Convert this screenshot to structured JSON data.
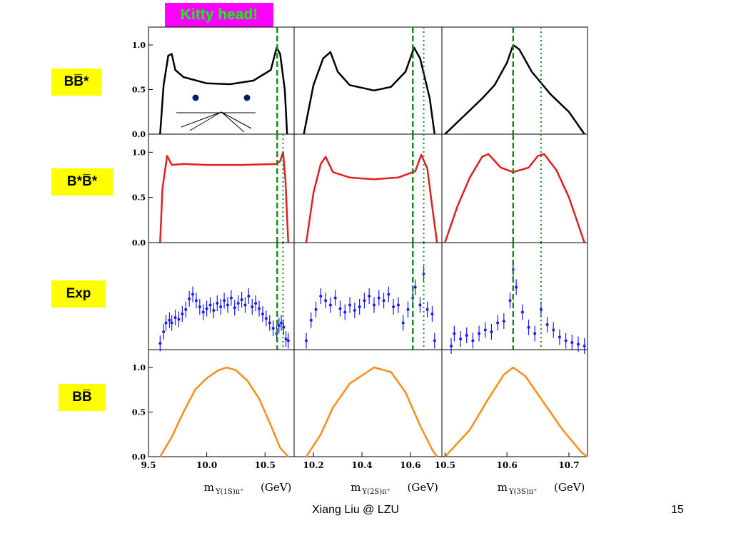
{
  "slide": {
    "banner": "Kitty head!",
    "footer_author": "Xiang Liu @ LZU",
    "page_number": "15",
    "colors": {
      "banner_bg": "#ff00ff",
      "banner_text": "#00ff00",
      "label_bg": "#ffff00"
    }
  },
  "chart_data": {
    "type": "line",
    "layout": "4x3 panel grid",
    "row_labels": [
      "BB̅*",
      "B*B̅*",
      "Exp",
      "BB̅"
    ],
    "row_colors": [
      "#000000",
      "#e02020",
      "#1a1aff",
      "#ff8c1a"
    ],
    "ylim": [
      0,
      1.2
    ],
    "yticks": [
      "0.0",
      "0.5",
      "1.0"
    ],
    "columns": [
      {
        "xlabel": "m",
        "xlabel_sub": "Υ(1S)π⁺",
        "xlabel_unit": "(GeV)",
        "xlim": [
          9.5,
          10.75
        ],
        "xticks": [
          9.5,
          10.0,
          10.5
        ],
        "xtick_labels": [
          "9.5",
          "10.0",
          "10.5"
        ],
        "dashed_line_x": 10.605,
        "dotted_line_x": 10.655,
        "curves": {
          "BBstar": [
            [
              9.6,
              0
            ],
            [
              9.63,
              0.55
            ],
            [
              9.67,
              0.88
            ],
            [
              9.7,
              0.9
            ],
            [
              9.73,
              0.72
            ],
            [
              9.8,
              0.64
            ],
            [
              10.0,
              0.57
            ],
            [
              10.2,
              0.56
            ],
            [
              10.4,
              0.6
            ],
            [
              10.55,
              0.72
            ],
            [
              10.6,
              0.97
            ],
            [
              10.63,
              0.9
            ],
            [
              10.67,
              0.5
            ],
            [
              10.69,
              0
            ]
          ],
          "BstarBstar": [
            [
              9.6,
              0
            ],
            [
              9.62,
              0.6
            ],
            [
              9.66,
              0.96
            ],
            [
              9.7,
              0.86
            ],
            [
              9.8,
              0.87
            ],
            [
              10.0,
              0.86
            ],
            [
              10.3,
              0.86
            ],
            [
              10.6,
              0.87
            ],
            [
              10.63,
              0.9
            ],
            [
              10.655,
              1.0
            ],
            [
              10.675,
              0.7
            ],
            [
              10.7,
              0
            ]
          ],
          "BB": [
            [
              9.6,
              0
            ],
            [
              9.7,
              0.22
            ],
            [
              9.8,
              0.5
            ],
            [
              9.9,
              0.75
            ],
            [
              10.0,
              0.88
            ],
            [
              10.1,
              0.97
            ],
            [
              10.17,
              1.0
            ],
            [
              10.25,
              0.97
            ],
            [
              10.35,
              0.85
            ],
            [
              10.45,
              0.65
            ],
            [
              10.55,
              0.35
            ],
            [
              10.63,
              0.1
            ],
            [
              10.7,
              0
            ]
          ]
        },
        "exp_points": [
          [
            9.6,
            0.07
          ],
          [
            9.63,
            0.2
          ],
          [
            9.65,
            0.3
          ],
          [
            9.68,
            0.33
          ],
          [
            9.7,
            0.3
          ],
          [
            9.73,
            0.36
          ],
          [
            9.76,
            0.34
          ],
          [
            9.79,
            0.4
          ],
          [
            9.82,
            0.45
          ],
          [
            9.85,
            0.57
          ],
          [
            9.88,
            0.62
          ],
          [
            9.91,
            0.55
          ],
          [
            9.94,
            0.48
          ],
          [
            9.97,
            0.42
          ],
          [
            10.0,
            0.46
          ],
          [
            10.03,
            0.5
          ],
          [
            10.06,
            0.44
          ],
          [
            10.09,
            0.52
          ],
          [
            10.12,
            0.48
          ],
          [
            10.15,
            0.55
          ],
          [
            10.18,
            0.5
          ],
          [
            10.21,
            0.58
          ],
          [
            10.24,
            0.47
          ],
          [
            10.27,
            0.52
          ],
          [
            10.3,
            0.56
          ],
          [
            10.33,
            0.5
          ],
          [
            10.36,
            0.6
          ],
          [
            10.39,
            0.48
          ],
          [
            10.42,
            0.52
          ],
          [
            10.45,
            0.46
          ],
          [
            10.48,
            0.4
          ],
          [
            10.51,
            0.35
          ],
          [
            10.54,
            0.3
          ],
          [
            10.57,
            0.24
          ],
          [
            10.6,
            0.18
          ],
          [
            10.62,
            0.27
          ],
          [
            10.64,
            0.3
          ],
          [
            10.66,
            0.25
          ],
          [
            10.68,
            0.12
          ],
          [
            10.7,
            0.1
          ]
        ]
      },
      {
        "xlabel": "m",
        "xlabel_sub": "Υ(2S)π⁺",
        "xlabel_unit": "(GeV)",
        "xlim": [
          10.12,
          10.73
        ],
        "xticks": [
          10.2,
          10.4,
          10.6
        ],
        "xtick_labels": [
          "10.2",
          "10.4",
          "10.6"
        ],
        "dashed_line_x": 10.61,
        "dotted_line_x": 10.655,
        "curves": {
          "BBstar": [
            [
              10.16,
              0
            ],
            [
              10.2,
              0.55
            ],
            [
              10.24,
              0.85
            ],
            [
              10.27,
              0.92
            ],
            [
              10.3,
              0.7
            ],
            [
              10.35,
              0.55
            ],
            [
              10.45,
              0.49
            ],
            [
              10.52,
              0.53
            ],
            [
              10.58,
              0.7
            ],
            [
              10.615,
              0.97
            ],
            [
              10.64,
              0.85
            ],
            [
              10.68,
              0.4
            ],
            [
              10.7,
              0
            ]
          ],
          "BstarBstar": [
            [
              10.17,
              0
            ],
            [
              10.2,
              0.55
            ],
            [
              10.23,
              0.87
            ],
            [
              10.25,
              0.95
            ],
            [
              10.28,
              0.78
            ],
            [
              10.35,
              0.72
            ],
            [
              10.45,
              0.7
            ],
            [
              10.55,
              0.72
            ],
            [
              10.62,
              0.79
            ],
            [
              10.645,
              0.97
            ],
            [
              10.67,
              0.82
            ],
            [
              10.69,
              0.4
            ],
            [
              10.71,
              0
            ]
          ],
          "BB": [
            [
              10.17,
              0
            ],
            [
              10.23,
              0.25
            ],
            [
              10.28,
              0.55
            ],
            [
              10.35,
              0.82
            ],
            [
              10.45,
              1.0
            ],
            [
              10.52,
              0.95
            ],
            [
              10.58,
              0.72
            ],
            [
              10.64,
              0.35
            ],
            [
              10.69,
              0.08
            ],
            [
              10.71,
              0
            ]
          ]
        },
        "exp_points": [
          [
            10.17,
            0.1
          ],
          [
            10.19,
            0.33
          ],
          [
            10.21,
            0.45
          ],
          [
            10.23,
            0.6
          ],
          [
            10.25,
            0.55
          ],
          [
            10.27,
            0.5
          ],
          [
            10.29,
            0.58
          ],
          [
            10.31,
            0.46
          ],
          [
            10.33,
            0.42
          ],
          [
            10.35,
            0.5
          ],
          [
            10.37,
            0.44
          ],
          [
            10.39,
            0.48
          ],
          [
            10.41,
            0.55
          ],
          [
            10.43,
            0.6
          ],
          [
            10.45,
            0.5
          ],
          [
            10.47,
            0.58
          ],
          [
            10.49,
            0.55
          ],
          [
            10.51,
            0.62
          ],
          [
            10.53,
            0.48
          ],
          [
            10.55,
            0.5
          ],
          [
            10.57,
            0.3
          ],
          [
            10.59,
            0.45
          ],
          [
            10.61,
            0.58
          ],
          [
            10.62,
            0.7
          ],
          [
            10.64,
            0.5
          ],
          [
            10.655,
            0.85
          ],
          [
            10.67,
            0.45
          ],
          [
            10.69,
            0.4
          ],
          [
            10.7,
            0.1
          ]
        ]
      },
      {
        "xlabel": "m",
        "xlabel_sub": "Υ(3S)π⁺",
        "xlabel_unit": "(GeV)",
        "xlim": [
          10.495,
          10.73
        ],
        "xticks": [
          10.5,
          10.6,
          10.7
        ],
        "xtick_labels": [
          "10.5",
          "10.6",
          "10.7"
        ],
        "dashed_line_x": 10.61,
        "dotted_line_x": 10.655,
        "curves": {
          "BBstar": [
            [
              10.5,
              0
            ],
            [
              10.53,
              0.2
            ],
            [
              10.56,
              0.4
            ],
            [
              10.58,
              0.55
            ],
            [
              10.6,
              0.8
            ],
            [
              10.61,
              1.0
            ],
            [
              10.62,
              0.95
            ],
            [
              10.64,
              0.7
            ],
            [
              10.67,
              0.45
            ],
            [
              10.7,
              0.25
            ],
            [
              10.725,
              0
            ]
          ],
          "BstarBstar": [
            [
              10.5,
              0
            ],
            [
              10.52,
              0.4
            ],
            [
              10.54,
              0.72
            ],
            [
              10.56,
              0.95
            ],
            [
              10.57,
              0.98
            ],
            [
              10.59,
              0.83
            ],
            [
              10.61,
              0.78
            ],
            [
              10.635,
              0.83
            ],
            [
              10.65,
              0.96
            ],
            [
              10.66,
              0.98
            ],
            [
              10.68,
              0.8
            ],
            [
              10.7,
              0.5
            ],
            [
              10.725,
              0
            ]
          ],
          "BB": [
            [
              10.5,
              0
            ],
            [
              10.54,
              0.3
            ],
            [
              10.57,
              0.65
            ],
            [
              10.595,
              0.92
            ],
            [
              10.61,
              1.0
            ],
            [
              10.63,
              0.9
            ],
            [
              10.66,
              0.6
            ],
            [
              10.69,
              0.3
            ],
            [
              10.72,
              0.05
            ],
            [
              10.73,
              0
            ]
          ]
        },
        "exp_points": [
          [
            10.51,
            0.04
          ],
          [
            10.515,
            0.18
          ],
          [
            10.525,
            0.12
          ],
          [
            10.535,
            0.16
          ],
          [
            10.545,
            0.1
          ],
          [
            10.555,
            0.18
          ],
          [
            10.565,
            0.22
          ],
          [
            10.575,
            0.2
          ],
          [
            10.585,
            0.3
          ],
          [
            10.595,
            0.32
          ],
          [
            10.605,
            0.55
          ],
          [
            10.61,
            0.9
          ],
          [
            10.615,
            0.7
          ],
          [
            10.625,
            0.42
          ],
          [
            10.635,
            0.25
          ],
          [
            10.645,
            0.18
          ],
          [
            10.655,
            0.45
          ],
          [
            10.665,
            0.28
          ],
          [
            10.675,
            0.22
          ],
          [
            10.685,
            0.14
          ],
          [
            10.695,
            0.1
          ],
          [
            10.705,
            0.08
          ],
          [
            10.715,
            0.06
          ],
          [
            10.725,
            0.04
          ]
        ]
      }
    ]
  }
}
